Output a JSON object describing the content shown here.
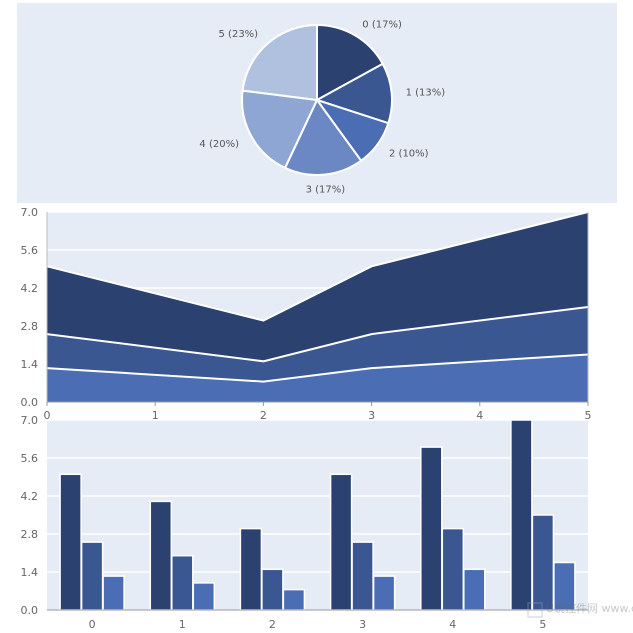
{
  "chart_data": [
    {
      "type": "pie",
      "slices": [
        {
          "category": "0",
          "percent": 17,
          "label": "0 (17%)",
          "color": "#2b4170"
        },
        {
          "category": "1",
          "percent": 13,
          "label": "1 (13%)",
          "color": "#3a5792"
        },
        {
          "category": "2",
          "percent": 10,
          "label": "2 (10%)",
          "color": "#4a6db4"
        },
        {
          "category": "3",
          "percent": 17,
          "label": "3 (17%)",
          "color": "#6b88c5"
        },
        {
          "category": "4",
          "percent": 20,
          "label": "4 (20%)",
          "color": "#8ea6d4"
        },
        {
          "category": "5",
          "percent": 23,
          "label": "5 (23%)",
          "color": "#b0c1e0"
        }
      ]
    },
    {
      "type": "area",
      "stacked": true,
      "x": [
        0,
        1,
        2,
        3,
        4,
        5
      ],
      "x_ticks": [
        "0",
        "1",
        "2",
        "3",
        "4",
        "5"
      ],
      "y_ticks": [
        "0.0",
        "1.4",
        "2.8",
        "4.2",
        "5.6",
        "7.0"
      ],
      "ylim": [
        0,
        7
      ],
      "grid": true,
      "series": [
        {
          "values": [
            1.25,
            0.75,
            1.25,
            1.75
          ],
          "x": [
            0,
            2,
            3,
            5
          ],
          "color": "#4a6db4"
        },
        {
          "values": [
            2.5,
            1.5,
            2.5,
            3.5
          ],
          "x": [
            0,
            2,
            3,
            5
          ],
          "color": "#3a5792"
        },
        {
          "values": [
            5.0,
            3.0,
            5.0,
            7.0
          ],
          "x": [
            0,
            2,
            3,
            5
          ],
          "color": "#2b4170"
        }
      ]
    },
    {
      "type": "bar",
      "categories": [
        "0",
        "1",
        "2",
        "3",
        "4",
        "5"
      ],
      "y_ticks": [
        "0.0",
        "1.4",
        "2.8",
        "4.2",
        "5.6",
        "7.0"
      ],
      "ylim": [
        0,
        7
      ],
      "grid": true,
      "series": [
        {
          "values": [
            5.0,
            4.0,
            3.0,
            5.0,
            6.0,
            7.0
          ],
          "color": "#2b4170"
        },
        {
          "values": [
            2.5,
            2.0,
            1.5,
            2.5,
            3.0,
            3.5
          ],
          "color": "#3a5792"
        },
        {
          "values": [
            1.25,
            1.0,
            0.75,
            1.25,
            1.5,
            1.75
          ],
          "color": "#4a6db4"
        }
      ]
    }
  ],
  "watermark": "U统控件网 www.cnnbz.com"
}
